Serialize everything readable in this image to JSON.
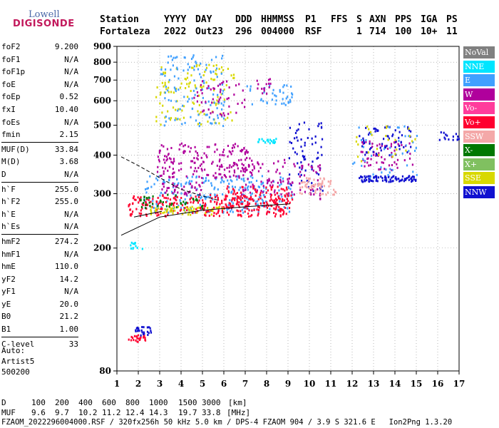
{
  "logo": {
    "line1": "Lowell",
    "line2": "DIGISONDE"
  },
  "header": {
    "labels": [
      "Station",
      "YYYY",
      "DAY",
      "DDD",
      "HHMMSS",
      "P1",
      "FFS",
      "S",
      "AXN",
      "PPS",
      "IGA",
      "PS"
    ],
    "values": [
      "Fortaleza",
      "2022",
      "Out23",
      "296",
      "004000",
      "RSF",
      "",
      "1",
      "714",
      "100",
      "10+",
      "11"
    ]
  },
  "params": [
    [
      [
        "foF2",
        "9.200"
      ],
      [
        "foF1",
        "N/A"
      ],
      [
        "foF1p",
        "N/A"
      ],
      [
        "foE",
        "N/A"
      ],
      [
        "foEp",
        "0.52"
      ],
      [
        "fxI",
        "10.40"
      ],
      [
        "foEs",
        "N/A"
      ],
      [
        "fmin",
        "2.15"
      ]
    ],
    [
      [
        "MUF(D)",
        "33.84"
      ],
      [
        "M(D)",
        "3.68"
      ],
      [
        "D",
        "N/A"
      ]
    ],
    [
      [
        "h`F",
        "255.0"
      ],
      [
        "h`F2",
        "255.0"
      ],
      [
        "h`E",
        "N/A"
      ],
      [
        "h`Es",
        "N/A"
      ]
    ],
    [
      [
        "hmF2",
        "274.2"
      ],
      [
        "hmF1",
        "N/A"
      ],
      [
        "hmE",
        "110.0"
      ],
      [
        "yF2",
        "14.2"
      ],
      [
        "yF1",
        "N/A"
      ],
      [
        "yE",
        "20.0"
      ],
      [
        "B0",
        "21.2"
      ],
      [
        "B1",
        "1.00"
      ]
    ],
    [
      [
        "C-level",
        "33"
      ]
    ]
  ],
  "auto": [
    "Auto:",
    "Artist5",
    "500200"
  ],
  "muf_table": {
    "d_label": "D",
    "d_values": [
      "100",
      "200",
      "400",
      "600",
      "800",
      "1000",
      "1500",
      "3000"
    ],
    "d_unit": "[km]",
    "muf_label": "MUF",
    "muf_values": [
      "9.6",
      "9.7",
      "10.2",
      "11.2",
      "12.4",
      "14.3",
      "19.7",
      "33.8"
    ],
    "muf_unit": "[MHz]"
  },
  "footer": "FZAOM_2022296004000.RSF / 320fx256h 50 kHz 5.0 km / DPS-4 FZAOM 904 / 3.9 S 321.6 E   Ion2Png 1.3.20",
  "legend": [
    {
      "label": "NoVal",
      "color": "#808080"
    },
    {
      "label": "NNE",
      "color": "#00e5ff"
    },
    {
      "label": "E",
      "color": "#40a0ff"
    },
    {
      "label": "W",
      "color": "#b0009c"
    },
    {
      "label": "Vo-",
      "color": "#ff3c9c"
    },
    {
      "label": "Vo+",
      "color": "#ff0030"
    },
    {
      "label": "SSW",
      "color": "#f4a8a8"
    },
    {
      "label": "X-",
      "color": "#007800"
    },
    {
      "label": "X+",
      "color": "#80c060"
    },
    {
      "label": "SSE",
      "color": "#d8d800"
    },
    {
      "label": "NNW",
      "color": "#1010d0"
    }
  ],
  "chart_data": {
    "type": "scatter",
    "title": "",
    "xlabel": "",
    "ylabel": "",
    "xlim": [
      1,
      17
    ],
    "ylim": [
      80,
      900
    ],
    "y_scale": "log",
    "x_ticks": [
      "1",
      "2",
      "3",
      "4",
      "5",
      "6",
      "7",
      "8",
      "9",
      "10",
      "11",
      "12",
      "13",
      "14",
      "15",
      "16",
      "17"
    ],
    "y_ticks": [
      80,
      200,
      300,
      400,
      500,
      600,
      700,
      800,
      900
    ],
    "grid": "dotted",
    "legend_position": "right",
    "clusters": [
      {
        "series": "E",
        "x": [
          2.2,
          9.2
        ],
        "y": [
          262,
          345
        ],
        "n": 260
      },
      {
        "series": "Vo+",
        "x": [
          1.5,
          9.2
        ],
        "y": [
          255,
          300
        ],
        "n": 280
      },
      {
        "series": "W",
        "x": [
          2.8,
          7.2
        ],
        "y": [
          340,
          440
        ],
        "n": 180
      },
      {
        "series": "W",
        "x": [
          6.5,
          9.3
        ],
        "y": [
          300,
          390
        ],
        "n": 80
      },
      {
        "series": "Vo+",
        "x": [
          6,
          9
        ],
        "y": [
          275,
          320
        ],
        "n": 80
      },
      {
        "series": "SSE",
        "x": [
          2.5,
          6
        ],
        "y": [
          258,
          275
        ],
        "n": 60
      },
      {
        "series": "X-",
        "x": [
          2,
          5
        ],
        "y": [
          268,
          300
        ],
        "n": 40
      },
      {
        "series": "SSE",
        "x": [
          2.8,
          6.5
        ],
        "y": [
          505,
          790
        ],
        "n": 120
      },
      {
        "series": "E",
        "x": [
          3,
          6
        ],
        "y": [
          500,
          850
        ],
        "n": 120
      },
      {
        "series": "E",
        "x": [
          7,
          9.2
        ],
        "y": [
          580,
          690
        ],
        "n": 40
      },
      {
        "series": "W",
        "x": [
          7.5,
          8.2
        ],
        "y": [
          630,
          720
        ],
        "n": 15
      },
      {
        "series": "NNW",
        "x": [
          9,
          10.6
        ],
        "y": [
          300,
          520
        ],
        "n": 70
      },
      {
        "series": "W",
        "x": [
          9.5,
          10.5
        ],
        "y": [
          290,
          380
        ],
        "n": 30
      },
      {
        "series": "SSW",
        "x": [
          9.5,
          11.2
        ],
        "y": [
          300,
          340
        ],
        "n": 60
      },
      {
        "series": "W",
        "x": [
          4.5,
          7
        ],
        "y": [
          540,
          700
        ],
        "n": 50
      },
      {
        "series": "NNW",
        "x": [
          12.3,
          15
        ],
        "y": [
          330,
          345
        ],
        "n": 90
      },
      {
        "series": "W",
        "x": [
          12.3,
          14.8
        ],
        "y": [
          360,
          450
        ],
        "n": 60
      },
      {
        "series": "NNW",
        "x": [
          12.3,
          14.8
        ],
        "y": [
          400,
          500
        ],
        "n": 60
      },
      {
        "series": "E",
        "x": [
          12,
          15
        ],
        "y": [
          340,
          500
        ],
        "n": 40
      },
      {
        "series": "SSE",
        "x": [
          12,
          15
        ],
        "y": [
          380,
          500
        ],
        "n": 25
      },
      {
        "series": "NNW",
        "x": [
          16,
          17
        ],
        "y": [
          450,
          480
        ],
        "n": 15
      },
      {
        "series": "NNE",
        "x": [
          7.5,
          8.5
        ],
        "y": [
          440,
          455
        ],
        "n": 20
      },
      {
        "series": "Vo+",
        "x": [
          1.5,
          2.3
        ],
        "y": [
          100,
          106
        ],
        "n": 25
      },
      {
        "series": "NNW",
        "x": [
          1.8,
          2.6
        ],
        "y": [
          104,
          112
        ],
        "n": 25
      },
      {
        "series": "NNE",
        "x": [
          1.6,
          2.2
        ],
        "y": [
          200,
          210
        ],
        "n": 12
      },
      {
        "series": "W",
        "x": [
          3,
          5
        ],
        "y": [
          300,
          330
        ],
        "n": 40
      }
    ],
    "traces": [
      {
        "points": [
          [
            1.2,
            220
          ],
          [
            3,
            252
          ],
          [
            5,
            265
          ],
          [
            7,
            272
          ],
          [
            9.1,
            278
          ]
        ]
      },
      {
        "points": [
          [
            1.2,
            395
          ],
          [
            2,
            370
          ],
          [
            3,
            338
          ],
          [
            4,
            310
          ],
          [
            5,
            295
          ],
          [
            5.8,
            285
          ]
        ]
      },
      {
        "points": [
          [
            1.8,
            252
          ],
          [
            2.5,
            258
          ],
          [
            3.1,
            263
          ]
        ]
      }
    ]
  }
}
